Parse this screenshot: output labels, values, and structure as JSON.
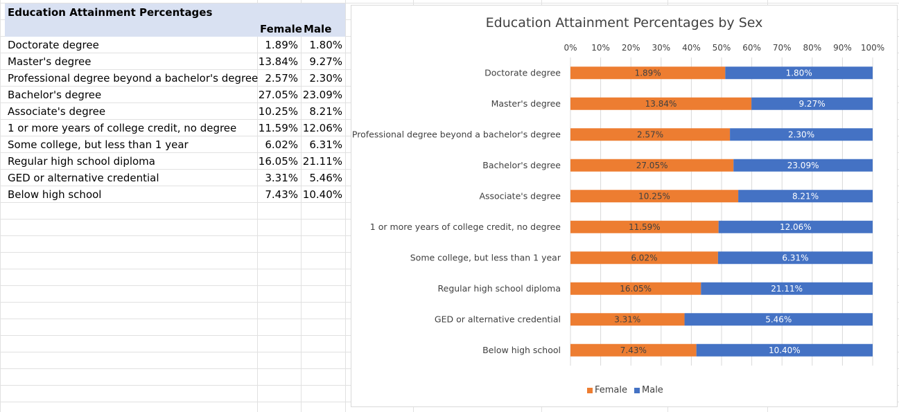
{
  "table": {
    "title": "Education Attainment Percentages",
    "header_female": "Female",
    "header_male": "Male",
    "rows": [
      {
        "label": "Doctorate degree",
        "female": "1.89%",
        "male": "1.80%"
      },
      {
        "label": "Master's degree",
        "female": "13.84%",
        "male": "9.27%"
      },
      {
        "label": "Professional degree beyond a bachelor's degree",
        "female": "2.57%",
        "male": "2.30%"
      },
      {
        "label": "Bachelor's degree",
        "female": "27.05%",
        "male": "23.09%"
      },
      {
        "label": "Associate's degree",
        "female": "10.25%",
        "male": "8.21%"
      },
      {
        "label": "1 or more years of college credit, no degree",
        "female": "11.59%",
        "male": "12.06%"
      },
      {
        "label": "Some college, but less than 1 year",
        "female": "6.02%",
        "male": "6.31%"
      },
      {
        "label": "Regular high school diploma",
        "female": "16.05%",
        "male": "21.11%"
      },
      {
        "label": "GED or alternative credential",
        "female": "3.31%",
        "male": "5.46%"
      },
      {
        "label": "Below high school",
        "female": "7.43%",
        "male": "10.40%"
      }
    ]
  },
  "chart_data": {
    "type": "bar",
    "orientation": "horizontal",
    "stacking": "percent",
    "title": "Education Attainment Percentages by Sex",
    "categories": [
      "Doctorate degree",
      "Master's degree",
      "Professional degree beyond a bachelor's degree",
      "Bachelor's degree",
      "Associate's degree",
      "1 or more years of college credit, no degree",
      "Some college, but less than 1 year",
      "Regular high school diploma",
      "GED or alternative credential",
      "Below high school"
    ],
    "series": [
      {
        "name": "Female",
        "color": "#ed7d31",
        "values": [
          1.89,
          13.84,
          2.57,
          27.05,
          10.25,
          11.59,
          6.02,
          16.05,
          3.31,
          7.43
        ],
        "labels": [
          "1.89%",
          "13.84%",
          "2.57%",
          "27.05%",
          "10.25%",
          "11.59%",
          "6.02%",
          "16.05%",
          "3.31%",
          "7.43%"
        ]
      },
      {
        "name": "Male",
        "color": "#4472c4",
        "values": [
          1.8,
          9.27,
          2.3,
          23.09,
          8.21,
          12.06,
          6.31,
          21.11,
          5.46,
          10.4
        ],
        "labels": [
          "1.80%",
          "9.27%",
          "2.30%",
          "23.09%",
          "8.21%",
          "12.06%",
          "6.31%",
          "21.11%",
          "5.46%",
          "10.40%"
        ]
      }
    ],
    "x_ticks": [
      "0%",
      "10%",
      "20%",
      "30%",
      "40%",
      "50%",
      "60%",
      "70%",
      "80%",
      "90%",
      "100%"
    ],
    "xlim": [
      0,
      100
    ],
    "axis_position": "top",
    "grid": true,
    "legend_position": "bottom"
  }
}
